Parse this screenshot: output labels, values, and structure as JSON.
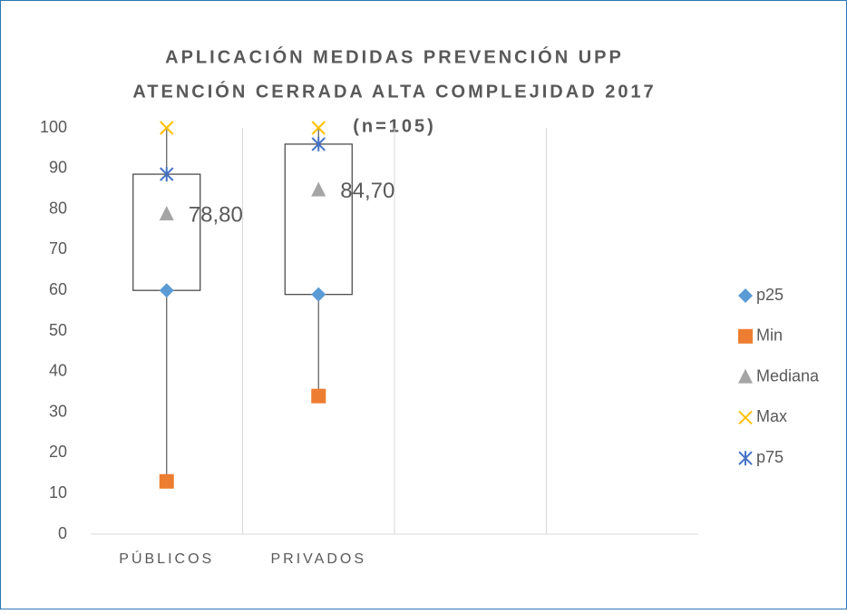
{
  "chart_data": {
    "type": "box",
    "title": [
      "APLICACIÓN MEDIDAS PREVENCIÓN UPP",
      "ATENCIÓN CERRADA ALTA COMPLEJIDAD 2017",
      "(n=105)"
    ],
    "categories": [
      "PÚBLICOS",
      "PRIVADOS",
      null,
      null
    ],
    "series": [
      {
        "name": "p25",
        "color": "#5b9bd5",
        "marker": "diamond",
        "values": [
          60,
          59,
          null,
          null
        ]
      },
      {
        "name": "Min",
        "color": "#ed7d31",
        "marker": "square",
        "values": [
          13,
          34,
          null,
          null
        ]
      },
      {
        "name": "Mediana",
        "color": "#a5a5a5",
        "marker": "triangle",
        "values": [
          78.8,
          84.7,
          null,
          null
        ],
        "value_labels": [
          "78,80",
          "84,70",
          null,
          null
        ]
      },
      {
        "name": "Max",
        "color": "#ffc000",
        "marker": "x",
        "values": [
          100,
          100,
          null,
          null
        ]
      },
      {
        "name": "p75",
        "color": "#4472c4",
        "marker": "star",
        "values": [
          88.6,
          96,
          null,
          null
        ]
      }
    ],
    "ylim": [
      0,
      100
    ],
    "yticks": [
      0,
      10,
      20,
      30,
      40,
      50,
      60,
      70,
      80,
      90,
      100
    ],
    "grid": "x",
    "legend": "right"
  }
}
